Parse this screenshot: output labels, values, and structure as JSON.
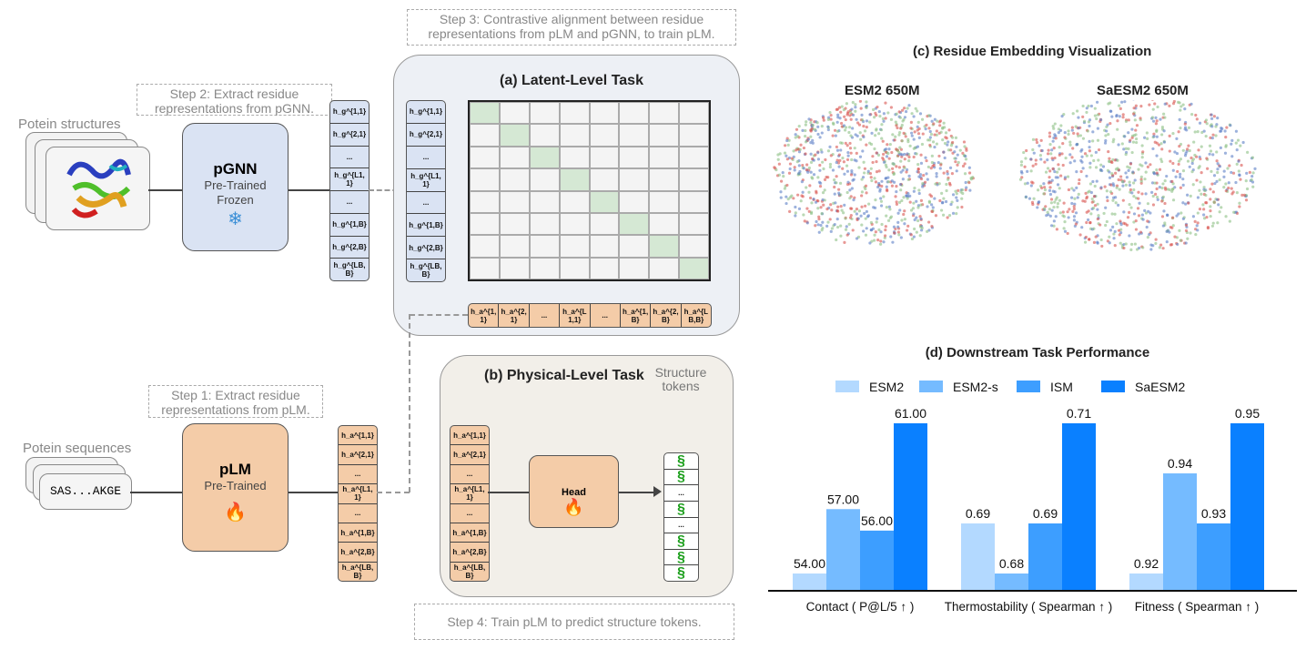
{
  "steps": {
    "step1": "Step 1: Extract residue representations from pLM.",
    "step2": "Step 2: Extract residue representations from pGNN.",
    "step3": "Step 3: Contrastive alignment between residue representations from pLM and pGNN, to train pLM.",
    "step4": "Step 4: Train pLM to predict structure tokens."
  },
  "inputs": {
    "structures_label": "Potein structures",
    "sequences_label": "Potein sequences",
    "sequence": "SAS...AKGE"
  },
  "pgnn": {
    "title": "pGNN",
    "line1": "Pre-Trained",
    "line2": "Frozen",
    "icon": "snowflake-icon",
    "color": "#dae3f3"
  },
  "plm": {
    "title": "pLM",
    "line1": "Pre-Trained",
    "icon": "fire-icon",
    "color": "#f4cca8"
  },
  "vectors": {
    "g": [
      "h_g^{1,1}",
      "h_g^{2,1}",
      "...",
      "h_g^{L1,1}",
      "...",
      "h_g^{1,B}",
      "h_g^{2,B}",
      "h_g^{LB,B}"
    ],
    "a": [
      "h_a^{1,1}",
      "h_a^{2,1}",
      "...",
      "h_a^{L1,1}",
      "...",
      "h_a^{1,B}",
      "h_a^{2,B}",
      "h_a^{LB,B}"
    ]
  },
  "panel_a": {
    "title": "(a) Latent-Level Task"
  },
  "panel_b": {
    "title": "(b) Physical-Level Task",
    "tokens_label": "Structure tokens",
    "head_label": "Head"
  },
  "panel_c": {
    "title": "(c) Residue Embedding Visualization",
    "left": "ESM2 650M",
    "right": "SaESM2 650M",
    "colors": [
      "#d9534f",
      "#5b7fc7",
      "#8cc084"
    ]
  },
  "chart_data": {
    "type": "bar",
    "title": "(d) Downstream Task Performance",
    "categories": [
      "Contact ( P@L/5 ↑ )",
      "Thermostability ( Spearman ↑ )",
      "Fitness ( Spearman ↑ )"
    ],
    "series": [
      {
        "name": "ESM2",
        "color": "#b3d9ff",
        "values": [
          54.0,
          0.69,
          0.92
        ]
      },
      {
        "name": "ESM2-s",
        "color": "#75bbff",
        "values": [
          57.0,
          0.68,
          0.94
        ]
      },
      {
        "name": "ISM",
        "color": "#3d9eff",
        "values": [
          56.0,
          0.69,
          0.93
        ]
      },
      {
        "name": "SaESM2",
        "color": "#0a80ff",
        "values": [
          61.0,
          0.71,
          0.95
        ]
      }
    ],
    "labels": [
      [
        "54.00",
        "0.69",
        "0.92"
      ],
      [
        "57.00",
        "0.68",
        "0.94"
      ],
      [
        "56.00",
        "0.69",
        "0.93"
      ],
      [
        "61.00",
        "0.71",
        "0.95"
      ]
    ],
    "legend": "top",
    "grid": false
  }
}
